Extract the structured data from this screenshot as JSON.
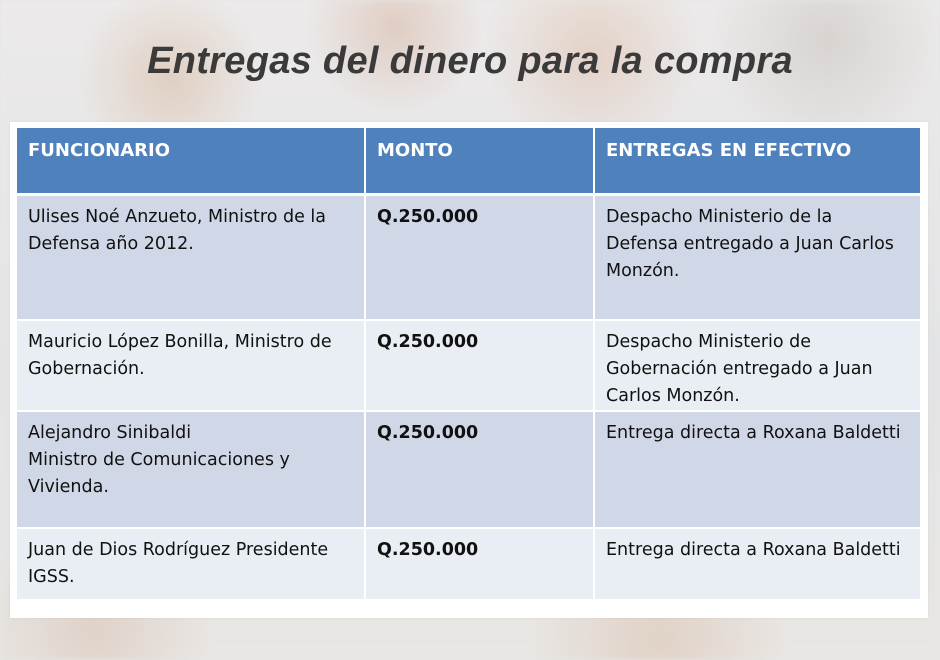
{
  "slide": {
    "title": "Entregas del dinero para la compra"
  },
  "table": {
    "headers": {
      "funcionario": "FUNCIONARIO",
      "monto": "MONTO",
      "entregas": "ENTREGAS EN EFECTIVO"
    },
    "rows": [
      {
        "funcionario": "Ulises Noé Anzueto, Ministro de la Defensa  año 2012.",
        "monto": "Q.250.000",
        "entregas": "Despacho Ministerio de la Defensa entregado a Juan Carlos Monzón."
      },
      {
        "funcionario": "Mauricio López Bonilla, Ministro de Gobernación.",
        "monto": "Q.250.000",
        "entregas": "Despacho Ministerio de Gobernación entregado a Juan Carlos Monzón."
      },
      {
        "funcionario_line1": "Alejandro Sinibaldi",
        "funcionario_line2": "Ministro de Comunicaciones y Vivienda.",
        "monto": "Q.250.000",
        "entregas": "Entrega directa a Roxana Baldetti"
      },
      {
        "funcionario": "Juan de Dios Rodríguez Presidente IGSS.",
        "monto": "Q.250.000",
        "entregas": "Entrega directa a Roxana Baldetti"
      }
    ]
  }
}
